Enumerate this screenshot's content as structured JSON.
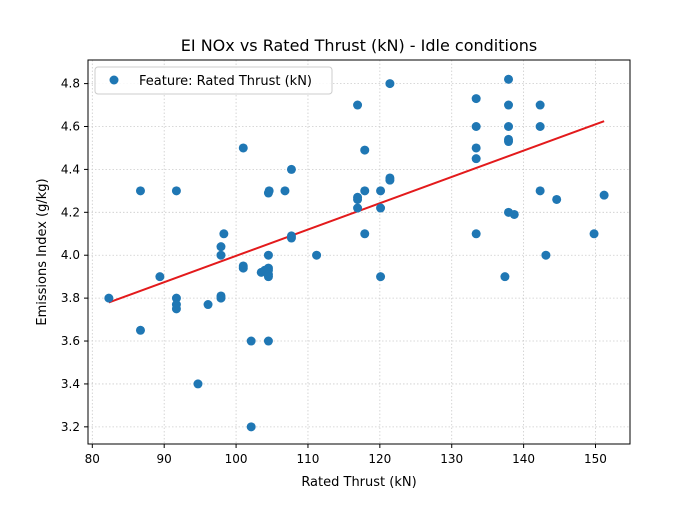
{
  "chart_data": {
    "type": "scatter",
    "title": "EI NOx vs Rated Thrust (kN) - Idle conditions",
    "xlabel": "Rated Thrust (kN)",
    "ylabel": "Emissions Index (g/kg)",
    "xlim": [
      79.4,
      154.8
    ],
    "ylim": [
      3.12,
      4.91
    ],
    "x_ticks": [
      "80",
      "90",
      "100",
      "110",
      "120",
      "130",
      "140",
      "150"
    ],
    "y_ticks": [
      "3.2",
      "3.4",
      "3.6",
      "3.8",
      "4.0",
      "4.2",
      "4.4",
      "4.6",
      "4.8"
    ],
    "grid": true,
    "legend": {
      "position": "upper-left",
      "entries": [
        "Feature: Rated Thrust (kN)"
      ]
    },
    "colors": {
      "points": "#1f77b4",
      "fit_line": "#e31a1c",
      "grid": "#cccccc"
    },
    "series": [
      {
        "name": "Feature: Rated Thrust (kN)",
        "points": [
          [
            82.3,
            3.8
          ],
          [
            86.7,
            4.3
          ],
          [
            86.7,
            3.65
          ],
          [
            89.4,
            3.9
          ],
          [
            91.7,
            4.3
          ],
          [
            91.7,
            3.8
          ],
          [
            91.7,
            3.77
          ],
          [
            91.7,
            3.75
          ],
          [
            94.7,
            3.4
          ],
          [
            96.1,
            3.77
          ],
          [
            97.9,
            4.04
          ],
          [
            97.9,
            4.0
          ],
          [
            97.9,
            3.81
          ],
          [
            97.9,
            3.8
          ],
          [
            98.3,
            4.1
          ],
          [
            101.0,
            4.5
          ],
          [
            101.0,
            3.95
          ],
          [
            101.0,
            3.94
          ],
          [
            102.1,
            3.6
          ],
          [
            102.1,
            3.2
          ],
          [
            103.5,
            3.92
          ],
          [
            104.0,
            3.93
          ],
          [
            104.5,
            4.29
          ],
          [
            104.6,
            4.3
          ],
          [
            104.5,
            4.0
          ],
          [
            104.5,
            3.94
          ],
          [
            104.5,
            3.93
          ],
          [
            104.5,
            3.91
          ],
          [
            104.5,
            3.9
          ],
          [
            104.5,
            3.6
          ],
          [
            106.8,
            4.3
          ],
          [
            107.7,
            4.4
          ],
          [
            107.7,
            4.09
          ],
          [
            107.7,
            4.08
          ],
          [
            111.2,
            4.0
          ],
          [
            116.9,
            4.7
          ],
          [
            116.9,
            4.27
          ],
          [
            116.9,
            4.26
          ],
          [
            116.9,
            4.22
          ],
          [
            117.9,
            4.49
          ],
          [
            117.9,
            4.3
          ],
          [
            117.9,
            4.1
          ],
          [
            120.1,
            4.3
          ],
          [
            120.1,
            4.22
          ],
          [
            120.1,
            3.9
          ],
          [
            121.4,
            4.8
          ],
          [
            121.4,
            4.36
          ],
          [
            121.4,
            4.35
          ],
          [
            133.4,
            4.73
          ],
          [
            133.4,
            4.6
          ],
          [
            133.4,
            4.5
          ],
          [
            133.4,
            4.45
          ],
          [
            133.4,
            4.1
          ],
          [
            137.4,
            3.9
          ],
          [
            137.9,
            4.82
          ],
          [
            137.9,
            4.7
          ],
          [
            137.9,
            4.6
          ],
          [
            137.9,
            4.54
          ],
          [
            137.9,
            4.53
          ],
          [
            137.9,
            4.2
          ],
          [
            138.7,
            4.19
          ],
          [
            142.3,
            4.7
          ],
          [
            142.3,
            4.6
          ],
          [
            142.3,
            4.3
          ],
          [
            143.1,
            4.0
          ],
          [
            144.6,
            4.26
          ],
          [
            149.8,
            4.1
          ],
          [
            151.2,
            4.28
          ]
        ]
      }
    ],
    "fit_line": {
      "x": [
        82.3,
        151.2
      ],
      "y": [
        3.78,
        4.625
      ]
    }
  }
}
